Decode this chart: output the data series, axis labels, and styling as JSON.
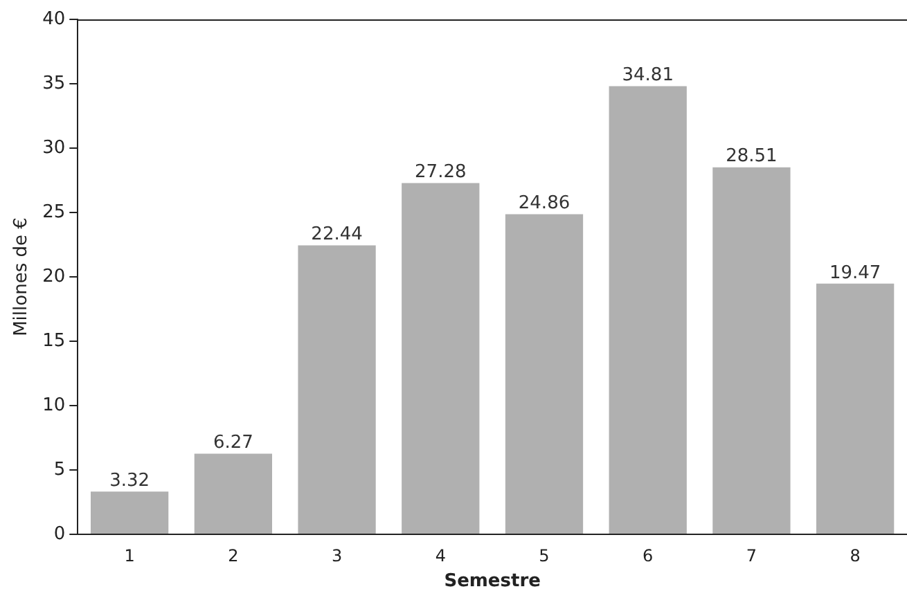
{
  "chart_data": {
    "type": "bar",
    "xlabel": "Semestre",
    "ylabel": "Millones de €",
    "categories": [
      "1",
      "2",
      "3",
      "4",
      "5",
      "6",
      "7",
      "8"
    ],
    "values": [
      3.32,
      6.27,
      22.44,
      27.28,
      24.86,
      34.81,
      28.51,
      19.47
    ],
    "color": "#b0b0b0",
    "ylim": [
      0,
      40
    ],
    "yticks": [
      0,
      5,
      10,
      15,
      20,
      25,
      30,
      35,
      40
    ],
    "grid": false,
    "legend": false,
    "data_labels": true
  }
}
